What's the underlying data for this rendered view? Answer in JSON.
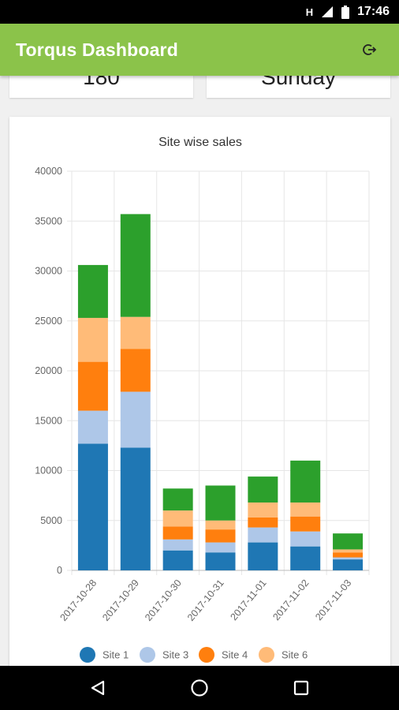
{
  "status_bar": {
    "network_label": "H",
    "time": "17:46"
  },
  "app_bar": {
    "title": "Torqus Dashboard",
    "logout_icon": "logout-icon"
  },
  "stats": [
    {
      "value": "180"
    },
    {
      "value": "Sunday"
    }
  ],
  "chart_data": {
    "type": "bar",
    "stacked": true,
    "title": "Site wise sales",
    "categories": [
      "2017-10-28",
      "2017-10-29",
      "2017-10-30",
      "2017-10-31",
      "2017-11-01",
      "2017-11-02",
      "2017-11-03"
    ],
    "ylim": [
      0,
      40000
    ],
    "yticks": [
      0,
      5000,
      10000,
      15000,
      20000,
      25000,
      30000,
      35000,
      40000
    ],
    "grid": true,
    "legend_position": "bottom",
    "series": [
      {
        "name": "Site 1",
        "color": "#1f77b4",
        "values": [
          12700,
          12300,
          2000,
          1800,
          2800,
          2400,
          1100
        ]
      },
      {
        "name": "Site 3",
        "color": "#aec7e8",
        "values": [
          3300,
          5600,
          1100,
          1000,
          1500,
          1500,
          200
        ]
      },
      {
        "name": "Site 4",
        "color": "#ff7f0e",
        "values": [
          4900,
          4300,
          1300,
          1300,
          1000,
          1500,
          500
        ]
      },
      {
        "name": "Site 6",
        "color": "#ffbb78",
        "values": [
          4400,
          3200,
          1600,
          900,
          1500,
          1400,
          300
        ]
      },
      {
        "color": "#2ca02c",
        "values": [
          5300,
          10300,
          2200,
          3500,
          2600,
          4200,
          1600
        ]
      }
    ]
  },
  "nav_bar": {
    "back_icon": "back-icon",
    "home_icon": "home-icon",
    "recents_icon": "recents-icon"
  }
}
